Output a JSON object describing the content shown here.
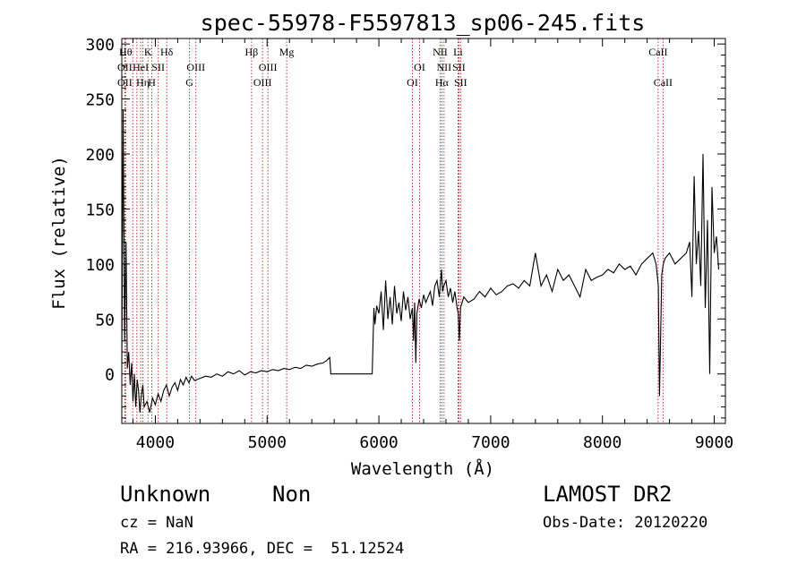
{
  "chart_data": {
    "type": "line",
    "title": "spec-55978-F5597813_sp06-245.fits",
    "xlabel": "Wavelength (Å)",
    "ylabel": "Flux (relative)",
    "xlim": [
      3700,
      9100
    ],
    "ylim": [
      -45,
      305
    ],
    "x_ticks": [
      4000,
      5000,
      6000,
      7000,
      8000,
      9000
    ],
    "y_ticks": [
      0,
      50,
      100,
      150,
      200,
      250,
      300
    ],
    "grid": false,
    "legend": "none",
    "line_color": "#000000",
    "marker_color": "#b22222",
    "spectrum": {
      "x": [
        3700,
        3712,
        3725,
        3738,
        3750,
        3762,
        3775,
        3788,
        3800,
        3812,
        3825,
        3838,
        3850,
        3862,
        3875,
        3888,
        3900,
        3925,
        3950,
        3975,
        4000,
        4025,
        4050,
        4075,
        4100,
        4125,
        4150,
        4175,
        4200,
        4225,
        4250,
        4275,
        4300,
        4325,
        4350,
        4400,
        4450,
        4500,
        4550,
        4600,
        4650,
        4700,
        4750,
        4800,
        4850,
        4900,
        4950,
        5000,
        5050,
        5100,
        5150,
        5200,
        5250,
        5300,
        5350,
        5400,
        5450,
        5500,
        5530,
        5560,
        5570,
        5580,
        5700,
        5850,
        5940,
        5955,
        5965,
        5980,
        6000,
        6020,
        6040,
        6060,
        6080,
        6100,
        6120,
        6140,
        6160,
        6180,
        6200,
        6220,
        6240,
        6260,
        6280,
        6300,
        6310,
        6320,
        6330,
        6340,
        6360,
        6380,
        6400,
        6420,
        6440,
        6460,
        6480,
        6500,
        6520,
        6540,
        6560,
        6570,
        6580,
        6600,
        6620,
        6640,
        6660,
        6680,
        6700,
        6710,
        6720,
        6730,
        6760,
        6800,
        6850,
        6900,
        6950,
        7000,
        7050,
        7100,
        7150,
        7200,
        7250,
        7300,
        7350,
        7400,
        7450,
        7500,
        7550,
        7600,
        7650,
        7700,
        7750,
        7800,
        7850,
        7900,
        7950,
        8000,
        8050,
        8100,
        8150,
        8200,
        8250,
        8300,
        8350,
        8400,
        8450,
        8480,
        8500,
        8510,
        8520,
        8530,
        8545,
        8560,
        8600,
        8650,
        8700,
        8750,
        8780,
        8800,
        8820,
        8840,
        8860,
        8880,
        8900,
        8920,
        8940,
        8960,
        8980,
        9000,
        9020,
        9040
      ],
      "y": [
        10,
        240,
        30,
        120,
        5,
        20,
        -10,
        10,
        -25,
        0,
        -30,
        -5,
        -15,
        -35,
        -20,
        -10,
        -30,
        -25,
        -35,
        -22,
        -28,
        -18,
        -25,
        -15,
        -10,
        -20,
        -12,
        -8,
        -15,
        -5,
        -10,
        -3,
        -8,
        -2,
        -6,
        -4,
        -2,
        -3,
        0,
        -2,
        2,
        0,
        3,
        -1,
        2,
        1,
        3,
        2,
        4,
        3,
        5,
        4,
        6,
        5,
        8,
        7,
        9,
        10,
        12,
        15,
        0,
        0,
        0,
        0,
        0,
        60,
        45,
        62,
        55,
        75,
        40,
        85,
        50,
        70,
        45,
        80,
        55,
        65,
        48,
        75,
        58,
        70,
        50,
        60,
        30,
        65,
        10,
        55,
        68,
        60,
        72,
        65,
        70,
        75,
        62,
        80,
        85,
        70,
        95,
        75,
        80,
        85,
        70,
        78,
        65,
        75,
        60,
        55,
        30,
        60,
        70,
        65,
        68,
        75,
        70,
        78,
        72,
        75,
        80,
        82,
        78,
        85,
        80,
        110,
        80,
        90,
        75,
        95,
        85,
        90,
        80,
        70,
        95,
        85,
        88,
        90,
        95,
        92,
        100,
        95,
        98,
        90,
        100,
        105,
        110,
        100,
        80,
        -20,
        30,
        90,
        100,
        105,
        110,
        100,
        105,
        110,
        120,
        70,
        180,
        100,
        130,
        80,
        200,
        60,
        140,
        0,
        170,
        110,
        125,
        95
      ],
      "name": ""
    },
    "lines": [
      {
        "x": 3734,
        "label": "Hθ",
        "row": 0
      },
      {
        "x": 3727,
        "label": "OII",
        "row": 1
      },
      {
        "x": 3727,
        "label": "OII",
        "row": 2
      },
      {
        "x": 3798,
        "label": "",
        "row": -1
      },
      {
        "x": 3835,
        "label": "",
        "row": -1
      },
      {
        "x": 3869,
        "label": "HeI",
        "row": 1
      },
      {
        "x": 3889,
        "label": "Hη",
        "row": 2
      },
      {
        "x": 3934,
        "label": "K",
        "row": 0
      },
      {
        "x": 3969,
        "label": "H",
        "row": 2
      },
      {
        "x": 4026,
        "label": "SII",
        "row": 1
      },
      {
        "x": 4102,
        "label": "Hδ",
        "row": 0
      },
      {
        "x": 4306,
        "label": "G",
        "row": 2
      },
      {
        "x": 4363,
        "label": "OIII",
        "row": 1
      },
      {
        "x": 4861,
        "label": "Hβ",
        "row": 0
      },
      {
        "x": 4959,
        "label": "OIII",
        "row": 2
      },
      {
        "x": 5007,
        "label": "OIII",
        "row": 1
      },
      {
        "x": 5175,
        "label": "Mg",
        "row": 0
      },
      {
        "x": 6300,
        "label": "OI",
        "row": 2
      },
      {
        "x": 6364,
        "label": "OI",
        "row": 1
      },
      {
        "x": 6548,
        "label": "NII",
        "row": 0
      },
      {
        "x": 6563,
        "label": "Hα",
        "row": 2
      },
      {
        "x": 6583,
        "label": "NII",
        "row": 1
      },
      {
        "x": 6708,
        "label": "Li",
        "row": 0
      },
      {
        "x": 6716,
        "label": "SII",
        "row": 1
      },
      {
        "x": 6731,
        "label": "SII",
        "row": 2
      },
      {
        "x": 8498,
        "label": "CaII",
        "row": 0
      },
      {
        "x": 8542,
        "label": "CaII",
        "row": 2
      }
    ]
  },
  "footer": {
    "object_class": "Unknown",
    "subclass": "Non",
    "survey": "LAMOST DR2",
    "redshift": "cz = NaN",
    "obs_date": "Obs-Date: 20120220",
    "coords": "RA = 216.93966, DEC =  51.12524"
  }
}
